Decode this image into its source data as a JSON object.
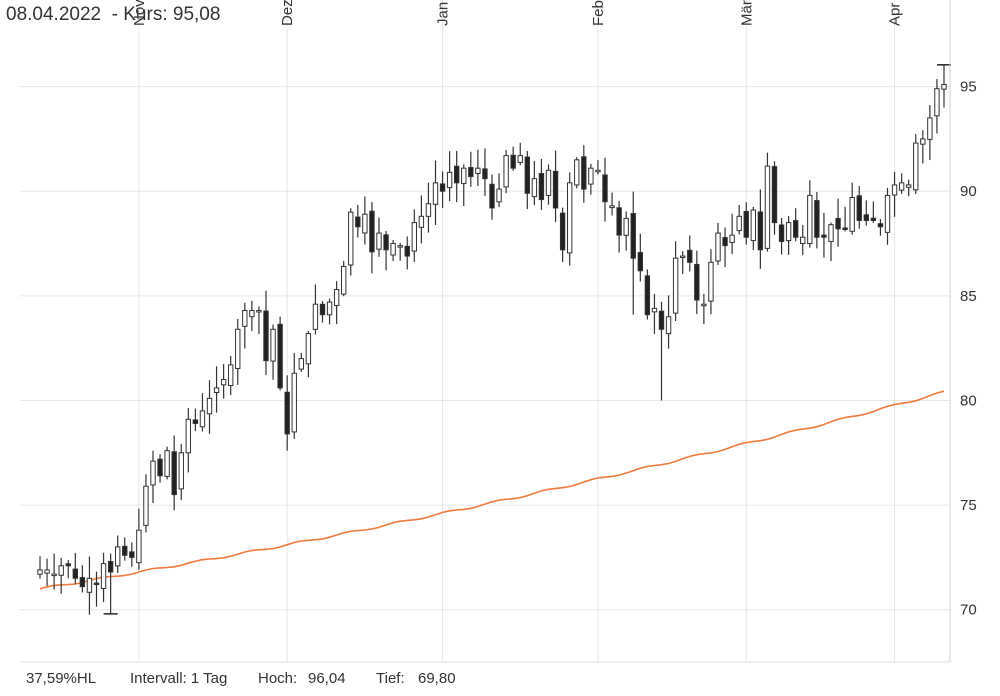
{
  "header": {
    "date": "08.04.2022",
    "price_label": "- Kurs:",
    "price_value": "95,08"
  },
  "footer": {
    "perf": "37,59%HL",
    "interval": "Intervall: 1 Tag",
    "high_label": "Hoch:",
    "high_value": "96,04",
    "low_label": "Tief:",
    "low_value": "69,80"
  },
  "colors": {
    "up": "#ffffff",
    "down": "#222222",
    "ma": "#f07a3c",
    "grid": "#e6e6e6"
  },
  "chart_data": {
    "type": "candlestick",
    "y_ticks": [
      70,
      75,
      80,
      85,
      90,
      95
    ],
    "y_tick_labels": [
      "70",
      "75",
      "80",
      "85",
      "90",
      "95"
    ],
    "ylim": [
      67.5,
      97.8
    ],
    "x_months": [
      "Nov",
      "Dez",
      "Jan",
      "Feb",
      "Mär",
      "Apr"
    ],
    "x_month_positions": [
      14,
      35,
      57,
      79,
      100,
      121
    ],
    "x_count": 129,
    "closes": [
      71.9,
      71.9,
      71.7,
      72.1,
      72.1,
      71.5,
      71.1,
      71.5,
      71.2,
      72.2,
      71.8,
      73.0,
      72.6,
      72.5,
      73.8,
      75.9,
      77.1,
      76.4,
      77.6,
      75.5,
      77.5,
      79.1,
      78.9,
      79.5,
      80.1,
      80.6,
      81.0,
      81.7,
      83.4,
      84.3,
      84.3,
      84.3,
      81.9,
      83.4,
      80.6,
      78.4,
      81.3,
      82.0,
      83.2,
      84.6,
      84.1,
      84.7,
      85.3,
      86.4,
      89.0,
      88.3,
      88.9,
      87.1,
      88.0,
      87.2,
      87.5,
      87.4,
      86.9,
      88.5,
      88.8,
      89.4,
      90.4,
      90.0,
      90.9,
      90.4,
      91.1,
      90.7,
      91.1,
      90.6,
      89.2,
      90.1,
      91.7,
      91.1,
      91.7,
      89.9,
      90.6,
      89.6,
      91.0,
      89.2,
      87.2,
      90.4,
      91.5,
      90.1,
      91.1,
      91.0,
      89.5,
      89.3,
      87.9,
      88.7,
      86.8,
      86.2,
      84.1,
      84.4,
      83.4,
      84.0,
      86.8,
      86.9,
      86.6,
      84.8,
      84.6,
      86.6,
      88.0,
      87.4,
      87.9,
      88.8,
      87.8,
      89.1,
      87.2,
      91.2,
      88.5,
      87.6,
      88.5,
      87.8,
      87.8,
      89.8,
      87.8,
      87.8,
      88.4,
      88.2,
      88.2,
      89.7,
      88.6,
      88.6,
      88.6,
      88.3,
      89.8,
      90.3,
      90.4,
      90.3,
      92.3,
      92.5,
      93.5,
      94.9,
      95.1
    ],
    "ma_start": 71.0,
    "ma_end": 80.4,
    "series": [
      {
        "name": "",
        "values": []
      }
    ]
  }
}
